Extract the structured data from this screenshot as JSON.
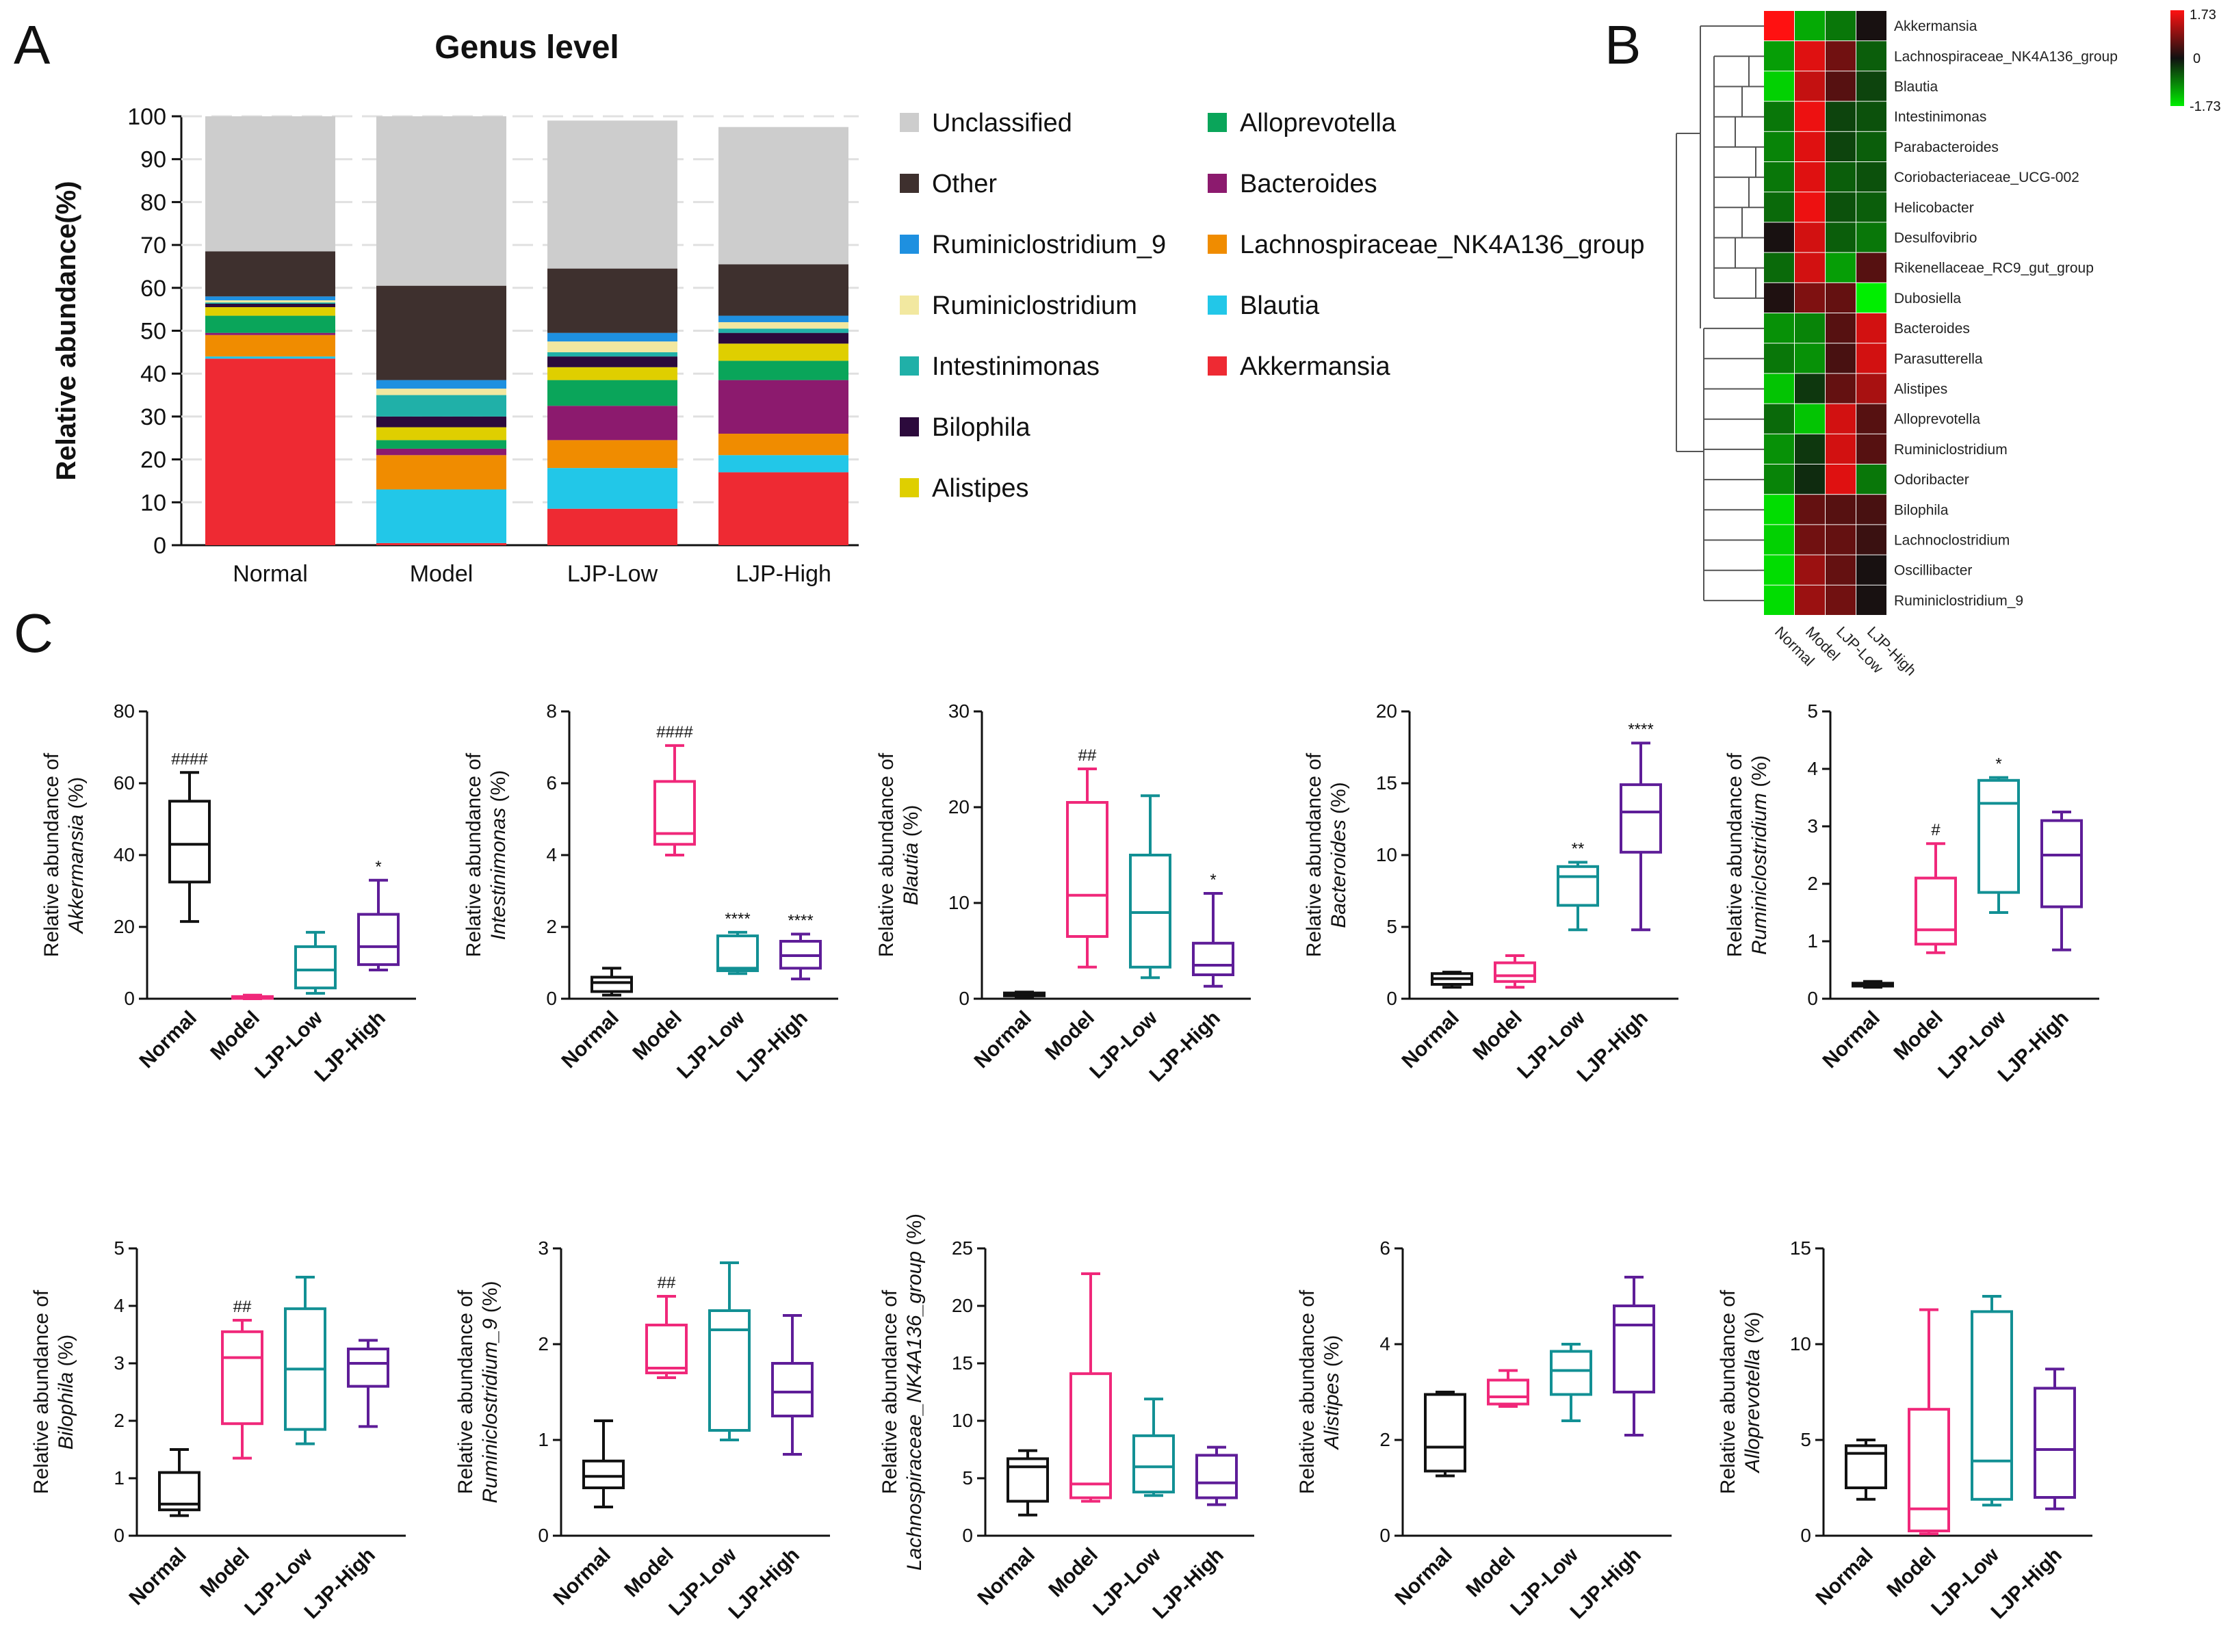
{
  "panel_labels": {
    "a": "A",
    "b": "B",
    "c": "C"
  },
  "chart_data": [
    {
      "type": "bar",
      "stacked": true,
      "title": "Genus level",
      "ylabel": "Relative abundance(%)",
      "xlabel": "",
      "ylim": [
        0,
        100
      ],
      "yticks": [
        0,
        10,
        20,
        30,
        40,
        50,
        60,
        70,
        80,
        90,
        100
      ],
      "categories": [
        "Normal",
        "Model",
        "LJP-Low",
        "LJP-High"
      ],
      "legend_position": "right",
      "series": [
        {
          "name": "Akkermansia",
          "color": "#ee2a33",
          "values": [
            43.5,
            0.5,
            8.5,
            17
          ]
        },
        {
          "name": "Blautia",
          "color": "#22c7e8",
          "values": [
            0.5,
            12.5,
            9.5,
            4
          ]
        },
        {
          "name": "Lachnospiraceae_NK4A136_group",
          "color": "#f08c00",
          "values": [
            5,
            8,
            6.5,
            5
          ]
        },
        {
          "name": "Bacteroides",
          "color": "#8c1a6e",
          "values": [
            0.5,
            1.5,
            8,
            12.5
          ]
        },
        {
          "name": "Alloprevotella",
          "color": "#0aa55a",
          "values": [
            4,
            2,
            6,
            4.5
          ]
        },
        {
          "name": "Alistipes",
          "color": "#dfcf00",
          "values": [
            2,
            3,
            3,
            4
          ]
        },
        {
          "name": "Bilophila",
          "color": "#2c0a3c",
          "values": [
            0.8,
            2.5,
            2.5,
            2.5
          ]
        },
        {
          "name": "Intestinimonas",
          "color": "#20b0a8",
          "values": [
            0.3,
            5,
            1,
            1
          ]
        },
        {
          "name": "Ruminiclostridium",
          "color": "#f2e8a0",
          "values": [
            0.5,
            1.5,
            2.5,
            1.5
          ]
        },
        {
          "name": "Ruminiclostridium_9",
          "color": "#1e90e0",
          "values": [
            0.9,
            2,
            2,
            1.5
          ]
        },
        {
          "name": "Other",
          "color": "#3e302e",
          "values": [
            10.5,
            22,
            15,
            12
          ]
        },
        {
          "name": "Unclassified",
          "color": "#cdcdcd",
          "values": [
            31.5,
            39.5,
            34.5,
            32
          ]
        }
      ],
      "legend_col1": [
        "Unclassified",
        "Other",
        "Ruminiclostridium_9",
        "Ruminiclostridium",
        "Intestinimonas",
        "Bilophila",
        "Alistipes"
      ],
      "legend_col2": [
        "Alloprevotella",
        "Bacteroides",
        "Lachnospiraceae_NK4A136_group",
        "Blautia",
        "Akkermansia"
      ]
    },
    {
      "type": "heatmap",
      "rows": [
        "Akkermansia",
        "Lachnospiraceae_NK4A136_group",
        "Blautia",
        "Intestinimonas",
        "Parabacteroides",
        "Coriobacteriaceae_UCG-002",
        "Helicobacter",
        "Desulfovibrio",
        "Rikenellaceae_RC9_gut_group",
        "Dubosiella",
        "Bacteroides",
        "Parasutterella",
        "Alistipes",
        "Alloprevotella",
        "Ruminiclostridium",
        "Odoribacter",
        "Bilophila",
        "Lachnoclostridium",
        "Oscillibacter",
        "Ruminiclostridium_9"
      ],
      "columns": [
        "Normal",
        "Model",
        "LJP-Low",
        "LJP-High"
      ],
      "values": [
        [
          1.73,
          -1.2,
          -0.8,
          0.05
        ],
        [
          -1.1,
          1.5,
          0.7,
          -0.6
        ],
        [
          -1.5,
          1.3,
          0.5,
          -0.4
        ],
        [
          -0.8,
          1.6,
          -0.4,
          -0.5
        ],
        [
          -0.9,
          1.5,
          -0.4,
          -0.6
        ],
        [
          -0.8,
          1.5,
          -0.6,
          -0.5
        ],
        [
          -0.7,
          1.6,
          -0.5,
          -0.6
        ],
        [
          0.05,
          1.4,
          -0.6,
          -0.8
        ],
        [
          -0.7,
          1.4,
          -1.1,
          0.5
        ],
        [
          0.1,
          0.8,
          0.6,
          -1.73
        ],
        [
          -1.0,
          -0.9,
          0.5,
          1.4
        ],
        [
          -0.8,
          -1.0,
          0.4,
          1.4
        ],
        [
          -1.4,
          -0.3,
          0.6,
          1.1
        ],
        [
          -0.7,
          -1.4,
          1.4,
          0.5
        ],
        [
          -1.0,
          -0.3,
          1.4,
          0.5
        ],
        [
          -0.9,
          -0.2,
          1.5,
          -0.8
        ],
        [
          -1.6,
          0.6,
          0.5,
          0.4
        ],
        [
          -1.5,
          0.7,
          0.6,
          0.3
        ],
        [
          -1.6,
          1.0,
          0.6,
          0.05
        ],
        [
          -1.6,
          1.0,
          0.7,
          0.05
        ]
      ],
      "scale": {
        "max": 1.73,
        "mid": 0,
        "min": -1.73,
        "labels": [
          "1.73",
          "0",
          "-1.73"
        ],
        "colors": {
          "high": "#ff1111",
          "mid": "#111111",
          "low": "#00ee00"
        }
      }
    },
    {
      "type": "box",
      "ylabel_top": "Relative abundance of",
      "taxon": "Akkermansia",
      "unit": "(%)",
      "ylim": [
        0,
        80
      ],
      "yticks": [
        0,
        20,
        40,
        60,
        80
      ],
      "categories": [
        "Normal",
        "Model",
        "LJP-Low",
        "LJP-High"
      ],
      "boxes": [
        {
          "min": 21.5,
          "q1": 32.5,
          "median": 43,
          "q3": 55,
          "max": 63,
          "sig": "####"
        },
        {
          "min": 0,
          "q1": 0.1,
          "median": 0.3,
          "q3": 0.6,
          "max": 1,
          "sig": ""
        },
        {
          "min": 1.5,
          "q1": 3,
          "median": 8,
          "q3": 14.5,
          "max": 18.5,
          "sig": ""
        },
        {
          "min": 8,
          "q1": 9.5,
          "median": 14.5,
          "q3": 23.5,
          "max": 33,
          "sig": "*"
        }
      ]
    },
    {
      "type": "box",
      "ylabel_top": "Relative abundance of",
      "taxon": "Intestinimonas",
      "unit": "(%)",
      "ylim": [
        0,
        8
      ],
      "yticks": [
        0,
        2,
        4,
        6,
        8
      ],
      "categories": [
        "Normal",
        "Model",
        "LJP-Low",
        "LJP-High"
      ],
      "boxes": [
        {
          "min": 0.1,
          "q1": 0.2,
          "median": 0.45,
          "q3": 0.6,
          "max": 0.85,
          "sig": ""
        },
        {
          "min": 4.0,
          "q1": 4.3,
          "median": 4.6,
          "q3": 6.05,
          "max": 7.05,
          "sig": "####"
        },
        {
          "min": 0.7,
          "q1": 0.78,
          "median": 0.85,
          "q3": 1.75,
          "max": 1.85,
          "sig": "****"
        },
        {
          "min": 0.55,
          "q1": 0.85,
          "median": 1.2,
          "q3": 1.6,
          "max": 1.8,
          "sig": "****"
        }
      ]
    },
    {
      "type": "box",
      "ylabel_top": "Relative abundance of",
      "taxon": "Blautia",
      "unit": "(%)",
      "ylim": [
        0,
        30
      ],
      "yticks": [
        0,
        10,
        20,
        30
      ],
      "categories": [
        "Normal",
        "Model",
        "LJP-Low",
        "LJP-High"
      ],
      "boxes": [
        {
          "min": 0.2,
          "q1": 0.3,
          "median": 0.45,
          "q3": 0.6,
          "max": 0.7,
          "sig": ""
        },
        {
          "min": 3.3,
          "q1": 6.5,
          "median": 10.8,
          "q3": 20.5,
          "max": 24,
          "sig": "##"
        },
        {
          "min": 2.2,
          "q1": 3.3,
          "median": 9,
          "q3": 15,
          "max": 21.2,
          "sig": ""
        },
        {
          "min": 1.3,
          "q1": 2.5,
          "median": 3.5,
          "q3": 5.8,
          "max": 11,
          "sig": "*"
        }
      ]
    },
    {
      "type": "box",
      "ylabel_top": "Relative abundance of",
      "taxon": "Bacteroides",
      "unit": "(%)",
      "ylim": [
        0,
        20
      ],
      "yticks": [
        0,
        5,
        10,
        15,
        20
      ],
      "categories": [
        "Normal",
        "Model",
        "LJP-Low",
        "LJP-High"
      ],
      "boxes": [
        {
          "min": 0.8,
          "q1": 1.0,
          "median": 1.4,
          "q3": 1.75,
          "max": 1.85,
          "sig": ""
        },
        {
          "min": 0.8,
          "q1": 1.2,
          "median": 1.6,
          "q3": 2.5,
          "max": 3.0,
          "sig": ""
        },
        {
          "min": 4.8,
          "q1": 6.5,
          "median": 8.5,
          "q3": 9.2,
          "max": 9.5,
          "sig": "**"
        },
        {
          "min": 4.8,
          "q1": 10.2,
          "median": 13,
          "q3": 14.9,
          "max": 17.8,
          "sig": "****"
        }
      ]
    },
    {
      "type": "box",
      "ylabel_top": "Relative abundance of",
      "taxon": "Ruminiclostridium",
      "unit": "(%)",
      "ylim": [
        0,
        5
      ],
      "yticks": [
        0,
        1,
        2,
        3,
        4,
        5
      ],
      "categories": [
        "Normal",
        "Model",
        "LJP-Low",
        "LJP-High"
      ],
      "boxes": [
        {
          "min": 0.2,
          "q1": 0.22,
          "median": 0.25,
          "q3": 0.27,
          "max": 0.3,
          "sig": ""
        },
        {
          "min": 0.8,
          "q1": 0.95,
          "median": 1.2,
          "q3": 2.1,
          "max": 2.7,
          "sig": "#"
        },
        {
          "min": 1.5,
          "q1": 1.85,
          "median": 3.4,
          "q3": 3.8,
          "max": 3.85,
          "sig": "*"
        },
        {
          "min": 0.85,
          "q1": 1.6,
          "median": 2.5,
          "q3": 3.1,
          "max": 3.25,
          "sig": ""
        }
      ]
    },
    {
      "type": "box",
      "ylabel_top": "Relative abundance of",
      "taxon": "Bilophila",
      "unit": "(%)",
      "ylim": [
        0,
        5
      ],
      "yticks": [
        0,
        1,
        2,
        3,
        4,
        5
      ],
      "categories": [
        "Normal",
        "Model",
        "LJP-Low",
        "LJP-High"
      ],
      "boxes": [
        {
          "min": 0.35,
          "q1": 0.45,
          "median": 0.55,
          "q3": 1.1,
          "max": 1.5,
          "sig": ""
        },
        {
          "min": 1.35,
          "q1": 1.95,
          "median": 3.1,
          "q3": 3.55,
          "max": 3.75,
          "sig": "##"
        },
        {
          "min": 1.6,
          "q1": 1.85,
          "median": 2.9,
          "q3": 3.95,
          "max": 4.5,
          "sig": ""
        },
        {
          "min": 1.9,
          "q1": 2.6,
          "median": 3.0,
          "q3": 3.25,
          "max": 3.4,
          "sig": ""
        }
      ]
    },
    {
      "type": "box",
      "ylabel_top": "Relative abundance of",
      "taxon": "Ruminiclostridium_9",
      "unit": "(%)",
      "ylim": [
        0,
        3
      ],
      "yticks": [
        0,
        1,
        2,
        3
      ],
      "categories": [
        "Normal",
        "Model",
        "LJP-Low",
        "LJP-High"
      ],
      "boxes": [
        {
          "min": 0.3,
          "q1": 0.5,
          "median": 0.62,
          "q3": 0.78,
          "max": 1.2,
          "sig": ""
        },
        {
          "min": 1.65,
          "q1": 1.7,
          "median": 1.75,
          "q3": 2.2,
          "max": 2.5,
          "sig": "##"
        },
        {
          "min": 1.0,
          "q1": 1.1,
          "median": 2.15,
          "q3": 2.35,
          "max": 2.85,
          "sig": ""
        },
        {
          "min": 0.85,
          "q1": 1.25,
          "median": 1.5,
          "q3": 1.8,
          "max": 2.3,
          "sig": ""
        }
      ]
    },
    {
      "type": "box",
      "ylabel_top": "Relative abundance of",
      "taxon": "Lachnospiraceae_NK4A136_group",
      "unit": "(%)",
      "ylim": [
        0,
        25
      ],
      "yticks": [
        0,
        5,
        10,
        15,
        20,
        25
      ],
      "categories": [
        "Normal",
        "Model",
        "LJP-Low",
        "LJP-High"
      ],
      "boxes": [
        {
          "min": 1.8,
          "q1": 3.0,
          "median": 6.0,
          "q3": 6.7,
          "max": 7.4,
          "sig": ""
        },
        {
          "min": 3.0,
          "q1": 3.3,
          "median": 4.5,
          "q3": 14.1,
          "max": 22.8,
          "sig": ""
        },
        {
          "min": 3.5,
          "q1": 3.8,
          "median": 6.0,
          "q3": 8.7,
          "max": 11.9,
          "sig": ""
        },
        {
          "min": 2.7,
          "q1": 3.3,
          "median": 4.6,
          "q3": 7.0,
          "max": 7.7,
          "sig": ""
        }
      ]
    },
    {
      "type": "box",
      "ylabel_top": "Relative abundance of",
      "taxon": "Alistipes",
      "unit": "(%)",
      "ylim": [
        0,
        6
      ],
      "yticks": [
        0,
        2,
        4,
        6
      ],
      "categories": [
        "Normal",
        "Model",
        "LJP-Low",
        "LJP-High"
      ],
      "boxes": [
        {
          "min": 1.25,
          "q1": 1.35,
          "median": 1.85,
          "q3": 2.95,
          "max": 3.0,
          "sig": ""
        },
        {
          "min": 2.7,
          "q1": 2.75,
          "median": 2.9,
          "q3": 3.25,
          "max": 3.45,
          "sig": ""
        },
        {
          "min": 2.4,
          "q1": 2.95,
          "median": 3.45,
          "q3": 3.85,
          "max": 4.0,
          "sig": ""
        },
        {
          "min": 2.1,
          "q1": 3.0,
          "median": 4.4,
          "q3": 4.8,
          "max": 5.4,
          "sig": ""
        }
      ]
    },
    {
      "type": "box",
      "ylabel_top": "Relative abundance of",
      "taxon": "Alloprevotella",
      "unit": "(%)",
      "ylim": [
        0,
        15
      ],
      "yticks": [
        0,
        5,
        10,
        15
      ],
      "categories": [
        "Normal",
        "Model",
        "LJP-Low",
        "LJP-High"
      ],
      "boxes": [
        {
          "min": 1.9,
          "q1": 2.5,
          "median": 4.3,
          "q3": 4.7,
          "max": 5.0,
          "sig": ""
        },
        {
          "min": 0.1,
          "q1": 0.25,
          "median": 1.4,
          "q3": 6.6,
          "max": 11.8,
          "sig": ""
        },
        {
          "min": 1.6,
          "q1": 1.9,
          "median": 3.9,
          "q3": 11.7,
          "max": 12.5,
          "sig": ""
        },
        {
          "min": 1.4,
          "q1": 2.0,
          "median": 4.5,
          "q3": 7.7,
          "max": 8.7,
          "sig": ""
        }
      ]
    }
  ],
  "box_colors": [
    "#111111",
    "#f0287a",
    "#129094",
    "#5e1d98"
  ]
}
